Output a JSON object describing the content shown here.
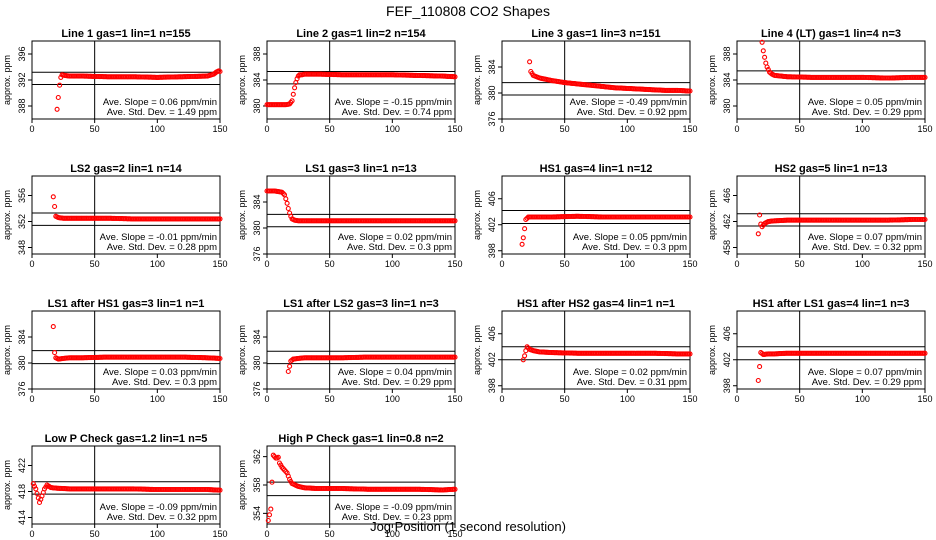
{
  "figure_title": "FEF_110808  CO2 Shapes",
  "xlabel": "Jog Position (1 second resolution)",
  "colors": {
    "points": "#ff0000",
    "axes": "#000000",
    "background": "#ffffff"
  },
  "chart_data": [
    {
      "type": "scatter",
      "title": "Line 1 gas=1 lin=1 n=155",
      "ylabel": "approx. ppm",
      "xlim": [
        0,
        150
      ],
      "ylim": [
        386,
        398
      ],
      "xticks": [
        0,
        50,
        100,
        150
      ],
      "yticks": [
        388,
        392,
        396
      ],
      "hlines": [
        391.3,
        393.2
      ],
      "vline": 50,
      "annotations": [
        "Ave. Slope = 0.06 ppm/min",
        "Ave. Std. Dev. = 1.49 ppm"
      ],
      "series": [
        {
          "x": [
            20,
            21,
            22,
            23,
            24,
            26,
            30,
            40,
            60,
            80,
            100,
            120,
            140,
            145,
            147,
            149,
            150
          ],
          "y": [
            387.5,
            389.3,
            391.2,
            392.4,
            392.8,
            392.7,
            392.6,
            392.6,
            392.5,
            392.5,
            392.4,
            392.5,
            392.6,
            392.9,
            393.2,
            393.4,
            393.3
          ]
        }
      ]
    },
    {
      "type": "scatter",
      "title": "Line 2 gas=1 lin=2 n=154",
      "ylabel": "approx. ppm",
      "xlim": [
        0,
        150
      ],
      "ylim": [
        378,
        390
      ],
      "xticks": [
        0,
        50,
        100,
        150
      ],
      "yticks": [
        380,
        384,
        388
      ],
      "hlines": [
        383.4,
        385.3
      ],
      "vline": 50,
      "annotations": [
        "Ave. Slope = -0.15 ppm/min",
        "Ave. Std. Dev. = 0.74 ppm"
      ],
      "series": [
        {
          "x": [
            0,
            5,
            10,
            15,
            18,
            20,
            21,
            22,
            23,
            24,
            25,
            26,
            28,
            30,
            40,
            60,
            80,
            100,
            120,
            140,
            150
          ],
          "y": [
            380.2,
            380.2,
            380.2,
            380.2,
            380.3,
            380.8,
            381.8,
            382.8,
            383.6,
            384.2,
            384.6,
            384.8,
            384.8,
            384.9,
            384.9,
            384.8,
            384.8,
            384.8,
            384.7,
            384.6,
            384.5
          ]
        }
      ]
    },
    {
      "type": "scatter",
      "title": "Line 3 gas=1 lin=3 n=151",
      "ylabel": "approx. ppm",
      "xlim": [
        0,
        150
      ],
      "ylim": [
        376,
        388
      ],
      "xticks": [
        0,
        50,
        100,
        150
      ],
      "yticks": [
        376,
        380,
        384
      ],
      "hlines": [
        379.7,
        381.6
      ],
      "vline": 50,
      "annotations": [
        "Ave. Slope = -0.49 ppm/min",
        "Ave. Std. Dev. = 0.92 ppm"
      ],
      "series": [
        {
          "x": [
            22,
            23,
            25,
            30,
            40,
            50,
            60,
            70,
            80,
            90,
            100,
            110,
            120,
            130,
            140,
            150
          ],
          "y": [
            384.8,
            383.3,
            382.7,
            382.3,
            381.9,
            381.6,
            381.4,
            381.2,
            381.0,
            380.8,
            380.7,
            380.6,
            380.5,
            380.4,
            380.4,
            380.3
          ]
        }
      ]
    },
    {
      "type": "scatter",
      "title": "Line 4 (LT) gas=1 lin=4 n=3",
      "ylabel": "approx. ppm",
      "xlim": [
        0,
        150
      ],
      "ylim": [
        378,
        390
      ],
      "xticks": [
        0,
        50,
        100,
        150
      ],
      "yticks": [
        380,
        384,
        388
      ],
      "hlines": [
        383.4,
        385.4
      ],
      "vline": 50,
      "annotations": [
        "Ave. Slope = 0.05 ppm/min",
        "Ave. Std. Dev. = 0.29 ppm"
      ],
      "series": [
        {
          "x": [
            20,
            21,
            22,
            23,
            24,
            25,
            26,
            28,
            30,
            35,
            40,
            60,
            80,
            100,
            120,
            140,
            150
          ],
          "y": [
            389.8,
            388.5,
            387.5,
            386.6,
            386.0,
            385.6,
            385.2,
            384.9,
            384.7,
            384.6,
            384.5,
            384.4,
            384.4,
            384.4,
            384.3,
            384.4,
            384.4
          ]
        }
      ]
    },
    {
      "type": "scatter",
      "title": "LS2 gas=2 lin=1 n=14",
      "ylabel": "approx. ppm",
      "xlim": [
        0,
        150
      ],
      "ylim": [
        347,
        359
      ],
      "xticks": [
        0,
        50,
        100,
        150
      ],
      "yticks": [
        348,
        352,
        356
      ],
      "hlines": [
        351.4,
        353.3
      ],
      "vline": 50,
      "annotations": [
        "Ave. Slope = -0.01 ppm/min",
        "Ave. Std. Dev. = 0.28 ppm"
      ],
      "series": [
        {
          "x": [
            17,
            19,
            21,
            25,
            30,
            40,
            60,
            80,
            100,
            120,
            140,
            150
          ],
          "y": [
            355.8,
            352.8,
            352.6,
            352.5,
            352.5,
            352.5,
            352.5,
            352.4,
            352.4,
            352.4,
            352.4,
            352.4
          ]
        }
      ]
    },
    {
      "type": "scatter",
      "title": "LS1 gas=3 lin=1 n=13",
      "ylabel": "approx. ppm",
      "xlim": [
        0,
        150
      ],
      "ylim": [
        376,
        388
      ],
      "xticks": [
        0,
        50,
        100,
        150
      ],
      "yticks": [
        376,
        380,
        384
      ],
      "hlines": [
        380.2,
        382.1
      ],
      "vline": 50,
      "annotations": [
        "Ave. Slope = 0.02 ppm/min",
        "Ave. Std. Dev. = 0.3 ppm"
      ],
      "series": [
        {
          "x": [
            0,
            3,
            6,
            9,
            12,
            14,
            15,
            16,
            17,
            18,
            19,
            20,
            22,
            25,
            30,
            40,
            60,
            80,
            100,
            120,
            140,
            150
          ],
          "y": [
            385.7,
            385.7,
            385.7,
            385.6,
            385.5,
            385.1,
            384.5,
            383.8,
            383.0,
            382.3,
            381.8,
            381.4,
            381.2,
            381.1,
            381.1,
            381.1,
            381.1,
            381.1,
            381.1,
            381.1,
            381.1,
            381.1
          ]
        }
      ]
    },
    {
      "type": "scatter",
      "title": "HS1 gas=4 lin=1 n=12",
      "ylabel": "approx. ppm",
      "xlim": [
        0,
        150
      ],
      "ylim": [
        397.5,
        409.5
      ],
      "xticks": [
        0,
        50,
        100,
        150
      ],
      "yticks": [
        398,
        402,
        406
      ],
      "hlines": [
        402.2,
        404.2
      ],
      "vline": 50,
      "annotations": [
        "Ave. Slope = 0.05 ppm/min",
        "Ave. Std. Dev. = 0.3 ppm"
      ],
      "series": [
        {
          "x": [
            16,
            17,
            19,
            21,
            25,
            30,
            40,
            60,
            80,
            100,
            120,
            140,
            150
          ],
          "y": [
            399.0,
            400.0,
            402.8,
            403.2,
            403.2,
            403.2,
            403.2,
            403.3,
            403.2,
            403.2,
            403.2,
            403.2,
            403.2
          ]
        }
      ]
    },
    {
      "type": "scatter",
      "title": "HS2 gas=5 lin=1 n=13",
      "ylabel": "approx. ppm",
      "xlim": [
        0,
        150
      ],
      "ylim": [
        457,
        469
      ],
      "xticks": [
        0,
        50,
        100,
        150
      ],
      "yticks": [
        458,
        462,
        466
      ],
      "hlines": [
        461.3,
        463.2
      ],
      "vline": 50,
      "annotations": [
        "Ave. Slope = 0.07 ppm/min",
        "Ave. Std. Dev. = 0.32 ppm"
      ],
      "series": [
        {
          "x": [
            17,
            18,
            19,
            20,
            22,
            25,
            30,
            40,
            60,
            80,
            100,
            120,
            140,
            150
          ],
          "y": [
            460.1,
            463.0,
            461.6,
            461.2,
            461.7,
            462.0,
            462.1,
            462.2,
            462.2,
            462.2,
            462.2,
            462.2,
            462.3,
            462.3
          ]
        }
      ]
    },
    {
      "type": "scatter",
      "title": "LS1 after HS1 gas=3 lin=1 n=1",
      "ylabel": "approx. ppm",
      "xlim": [
        0,
        150
      ],
      "ylim": [
        376,
        388
      ],
      "xticks": [
        0,
        50,
        100,
        150
      ],
      "yticks": [
        376,
        380,
        384
      ],
      "hlines": [
        379.9,
        381.9
      ],
      "vline": 50,
      "annotations": [
        "Ave. Slope = 0.03 ppm/min",
        "Ave. Std. Dev. = 0.3 ppm"
      ],
      "series": [
        {
          "x": [
            17,
            18,
            19,
            21,
            25,
            30,
            40,
            60,
            80,
            100,
            120,
            140,
            150
          ],
          "y": [
            385.6,
            381.6,
            380.8,
            380.6,
            380.7,
            380.8,
            380.8,
            380.9,
            380.9,
            380.9,
            380.9,
            380.8,
            380.7
          ]
        }
      ]
    },
    {
      "type": "scatter",
      "title": "LS1 after LS2 gas=3 lin=1 n=3",
      "ylabel": "approx. ppm",
      "xlim": [
        0,
        150
      ],
      "ylim": [
        376,
        388
      ],
      "xticks": [
        0,
        50,
        100,
        150
      ],
      "yticks": [
        376,
        380,
        384
      ],
      "hlines": [
        379.9,
        381.8
      ],
      "vline": 50,
      "annotations": [
        "Ave. Slope = 0.04 ppm/min",
        "Ave. Std. Dev. = 0.29 ppm"
      ],
      "series": [
        {
          "x": [
            17,
            19,
            21,
            25,
            30,
            40,
            60,
            80,
            100,
            120,
            140,
            150
          ],
          "y": [
            378.7,
            380.3,
            380.6,
            380.7,
            380.8,
            380.8,
            380.8,
            380.9,
            380.9,
            380.9,
            380.9,
            380.9
          ]
        }
      ]
    },
    {
      "type": "scatter",
      "title": "HS1 after HS2 gas=4 lin=1 n=1",
      "ylabel": "approx. ppm",
      "xlim": [
        0,
        150
      ],
      "ylim": [
        397.5,
        409.5
      ],
      "xticks": [
        0,
        50,
        100,
        150
      ],
      "yticks": [
        398,
        402,
        406
      ],
      "hlines": [
        402.0,
        404.0
      ],
      "vline": 50,
      "annotations": [
        "Ave. Slope = 0.02 ppm/min",
        "Ave. Std. Dev. = 0.31 ppm"
      ],
      "series": [
        {
          "x": [
            17,
            18,
            19,
            20,
            22,
            25,
            30,
            40,
            60,
            80,
            100,
            120,
            140,
            150
          ],
          "y": [
            402.0,
            402.6,
            403.4,
            404.0,
            403.6,
            403.4,
            403.2,
            403.1,
            403.0,
            403.0,
            403.0,
            403.0,
            402.9,
            402.9
          ]
        }
      ]
    },
    {
      "type": "scatter",
      "title": "HS1 after LS1 gas=4 lin=1 n=3",
      "ylabel": "approx. ppm",
      "xlim": [
        0,
        150
      ],
      "ylim": [
        397.5,
        409.5
      ],
      "xticks": [
        0,
        50,
        100,
        150
      ],
      "yticks": [
        398,
        402,
        406
      ],
      "hlines": [
        402.0,
        404.0
      ],
      "vline": 50,
      "annotations": [
        "Ave. Slope = 0.07 ppm/min",
        "Ave. Std. Dev. = 0.29 ppm"
      ],
      "series": [
        {
          "x": [
            17,
            19,
            21,
            25,
            30,
            40,
            60,
            80,
            100,
            120,
            140,
            150
          ],
          "y": [
            398.8,
            403.1,
            402.8,
            402.9,
            402.9,
            403.0,
            403.0,
            403.0,
            403.0,
            403.0,
            403.0,
            403.0
          ]
        }
      ]
    },
    {
      "type": "scatter",
      "title": "Low P Check gas=1.2 lin=1 n=5",
      "ylabel": "approx. ppm",
      "xlim": [
        0,
        150
      ],
      "ylim": [
        413,
        425
      ],
      "xticks": [
        0,
        50,
        100,
        150
      ],
      "yticks": [
        414,
        418,
        422
      ],
      "hlines": [
        417.6,
        419.5
      ],
      "vline": 50,
      "annotations": [
        "Ave. Slope = -0.09 ppm/min",
        "Ave. Std. Dev. = 0.32 ppm"
      ],
      "series": [
        {
          "x": [
            1,
            3,
            5,
            6,
            8,
            10,
            12,
            15,
            20,
            30,
            40,
            60,
            80,
            100,
            120,
            140,
            150
          ],
          "y": [
            419.2,
            418.4,
            417.0,
            416.3,
            417.3,
            418.4,
            419.0,
            418.6,
            418.5,
            418.4,
            418.4,
            418.4,
            418.4,
            418.3,
            418.3,
            418.3,
            418.2
          ]
        }
      ]
    },
    {
      "type": "scatter",
      "title": "High P Check gas=1 lin=0.8 n=2",
      "ylabel": "approx. ppm",
      "xlim": [
        0,
        150
      ],
      "ylim": [
        352.5,
        363.5
      ],
      "xticks": [
        0,
        50,
        100,
        150
      ],
      "yticks": [
        354,
        358,
        362
      ],
      "hlines": [
        356.5,
        358.4
      ],
      "vline": 50,
      "annotations": [
        "Ave. Slope = -0.09 ppm/min",
        "Ave. Std. Dev. = 0.23 ppm"
      ],
      "series": [
        {
          "x": [
            1,
            3,
            5,
            6,
            7,
            8,
            9,
            10,
            12,
            14,
            16,
            18,
            20,
            25,
            30,
            40,
            60,
            80,
            100,
            120,
            140,
            150
          ],
          "y": [
            353.0,
            354.6,
            362.2,
            362.0,
            361.8,
            361.8,
            361.9,
            361.1,
            360.5,
            360.1,
            359.7,
            358.8,
            358.2,
            357.8,
            357.6,
            357.5,
            357.5,
            357.4,
            357.4,
            357.4,
            357.3,
            357.4
          ]
        }
      ]
    }
  ]
}
